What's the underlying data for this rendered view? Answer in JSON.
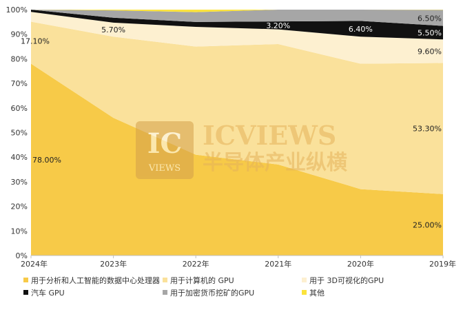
{
  "chart_data": {
    "type": "area",
    "stacked": true,
    "percent": true,
    "categories": [
      "2024年",
      "2023年",
      "2022年",
      "2021年",
      "2020年",
      "2019年"
    ],
    "ylim": [
      0,
      100
    ],
    "yticks": [
      "0%",
      "10%",
      "20%",
      "30%",
      "40%",
      "50%",
      "60%",
      "70%",
      "80%",
      "90%",
      "100%"
    ],
    "grid": false,
    "legend_position": "bottom",
    "series": [
      {
        "name": "用于分析和人工智能的数据中心处理器",
        "color": "#f7ca48",
        "values": [
          78.0,
          56.0,
          41.0,
          37.0,
          27.0,
          25.0
        ]
      },
      {
        "name": "用于计算机的 GPU",
        "color": "#fae19b",
        "values": [
          17.1,
          33.0,
          44.0,
          49.0,
          51.0,
          53.3
        ]
      },
      {
        "name": "用于 3D可视化的GPU",
        "color": "#fdf0d0",
        "values": [
          4.0,
          5.7,
          8.0,
          6.0,
          11.0,
          9.6
        ]
      },
      {
        "name": "汽车 GPU",
        "color": "#111111",
        "values": [
          0.9,
          2.0,
          2.0,
          3.2,
          6.4,
          5.5
        ]
      },
      {
        "name": "用于加密货币挖矿的GPU",
        "color": "#a6a6a6",
        "values": [
          0.0,
          3.0,
          4.0,
          4.8,
          4.6,
          6.5
        ]
      },
      {
        "name": "其他",
        "color": "#fbe33c",
        "values": [
          0.0,
          0.3,
          1.0,
          0.0,
          0.0,
          0.1
        ]
      }
    ],
    "data_labels": [
      {
        "text": "78.00%",
        "series": 0,
        "index": 0
      },
      {
        "text": "17.10%",
        "series": 1,
        "index": 0
      },
      {
        "text": "5.70%",
        "series": 2,
        "index": 1
      },
      {
        "text": "3.20%",
        "series": 3,
        "index": 3
      },
      {
        "text": "6.40%",
        "series": 3,
        "index": 4
      },
      {
        "text": "25.00%",
        "series": 0,
        "index": 5
      },
      {
        "text": "53.30%",
        "series": 1,
        "index": 5
      },
      {
        "text": "9.60%",
        "series": 2,
        "index": 5
      },
      {
        "text": "5.50%",
        "series": 3,
        "index": 5
      },
      {
        "text": "6.50%",
        "series": 4,
        "index": 5
      }
    ]
  },
  "watermark": {
    "logo_top": "IC",
    "logo_bottom": "VIEWS",
    "name_en": "ICVIEWS",
    "name_cn": "半导体产业纵横"
  }
}
